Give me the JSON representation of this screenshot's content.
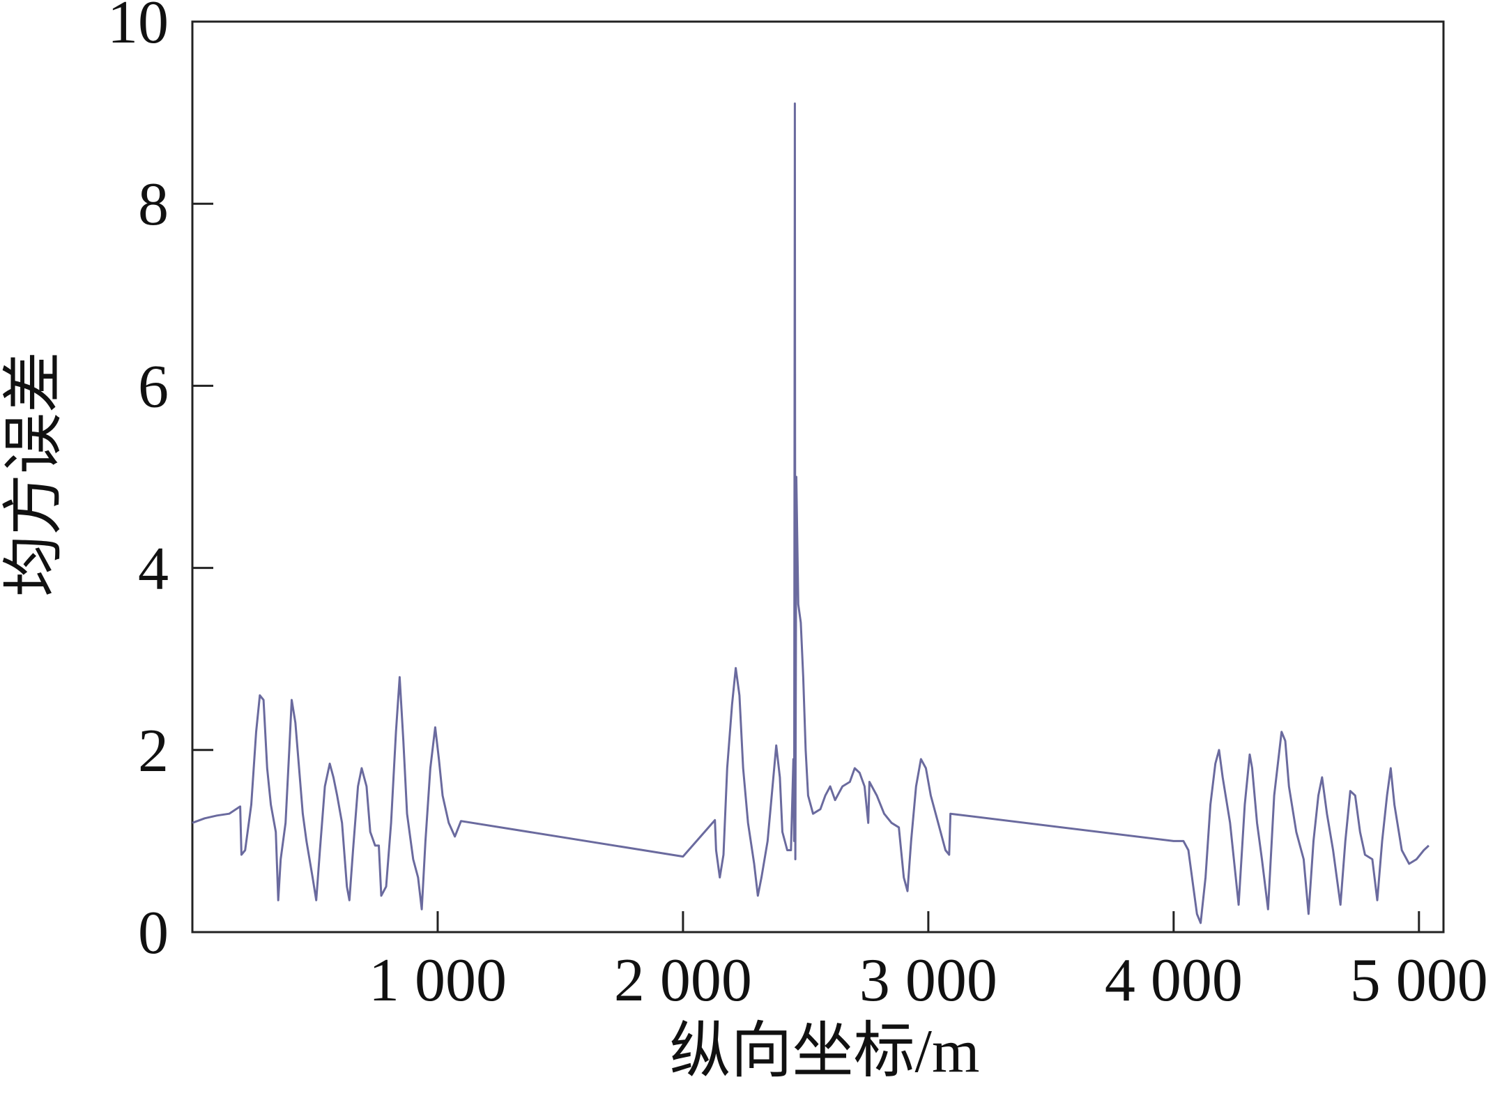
{
  "chart_data": {
    "type": "line",
    "xlabel": "纵向坐标/m",
    "ylabel": "均方误差",
    "xlim": [
      0,
      5100
    ],
    "ylim": [
      0,
      10
    ],
    "xticks": [
      {
        "value": 1000,
        "label": "1 000"
      },
      {
        "value": 2000,
        "label": "2 000"
      },
      {
        "value": 3000,
        "label": "3 000"
      },
      {
        "value": 4000,
        "label": "4 000"
      },
      {
        "value": 5000,
        "label": "5 000"
      }
    ],
    "yticks": [
      0,
      2,
      4,
      6,
      8,
      10
    ],
    "grid": false,
    "color": "#6a6a9e",
    "x": [
      0,
      50,
      100,
      150,
      195,
      200,
      215,
      240,
      260,
      275,
      290,
      305,
      320,
      340,
      350,
      360,
      380,
      395,
      405,
      420,
      435,
      450,
      465,
      490,
      505,
      520,
      540,
      560,
      575,
      590,
      610,
      630,
      640,
      655,
      675,
      690,
      710,
      725,
      745,
      760,
      770,
      790,
      810,
      830,
      845,
      860,
      875,
      900,
      920,
      935,
      950,
      970,
      990,
      1005,
      1020,
      1045,
      1070,
      1095,
      2000,
      2130,
      2135,
      2150,
      2165,
      2180,
      2200,
      2215,
      2230,
      2245,
      2265,
      2290,
      2305,
      2320,
      2345,
      2365,
      2380,
      2395,
      2405,
      2425,
      2440,
      2450,
      2453,
      2456,
      2458,
      2462,
      2470,
      2480,
      2490,
      2500,
      2510,
      2530,
      2560,
      2580,
      2600,
      2620,
      2650,
      2680,
      2700,
      2720,
      2740,
      2755,
      2760,
      2790,
      2820,
      2850,
      2880,
      2900,
      2915,
      2930,
      2950,
      2970,
      2990,
      3010,
      3040,
      3070,
      3085,
      3090,
      4000,
      4040,
      4060,
      4080,
      4095,
      4110,
      4130,
      4150,
      4170,
      4185,
      4200,
      4230,
      4265,
      4290,
      4310,
      4320,
      4340,
      4360,
      4385,
      4410,
      4440,
      4455,
      4470,
      4500,
      4530,
      4550,
      4570,
      4590,
      4605,
      4625,
      4650,
      4680,
      4700,
      4720,
      4740,
      4760,
      4780,
      4810,
      4830,
      4850,
      4870,
      4885,
      4900,
      4930,
      4960,
      4990,
      5020,
      5040
    ],
    "values": [
      1.2,
      1.25,
      1.28,
      1.3,
      1.38,
      0.85,
      0.9,
      1.4,
      2.2,
      2.6,
      2.55,
      1.8,
      1.4,
      1.1,
      0.35,
      0.8,
      1.2,
      2.0,
      2.55,
      2.3,
      1.8,
      1.3,
      1.0,
      0.6,
      0.35,
      0.9,
      1.6,
      1.85,
      1.7,
      1.5,
      1.2,
      0.5,
      0.35,
      0.9,
      1.6,
      1.8,
      1.6,
      1.1,
      0.95,
      0.95,
      0.4,
      0.5,
      1.2,
      2.2,
      2.8,
      2.1,
      1.3,
      0.8,
      0.6,
      0.25,
      1.0,
      1.8,
      2.25,
      1.9,
      1.5,
      1.2,
      1.05,
      1.22,
      0.83,
      1.23,
      0.9,
      0.6,
      0.85,
      1.8,
      2.5,
      2.9,
      2.6,
      1.8,
      1.2,
      0.75,
      0.4,
      0.6,
      1.0,
      1.6,
      2.05,
      1.7,
      1.1,
      0.9,
      0.9,
      1.9,
      1.0,
      9.1,
      0.8,
      5.0,
      3.6,
      3.4,
      2.8,
      2.0,
      1.5,
      1.3,
      1.35,
      1.5,
      1.6,
      1.45,
      1.6,
      1.65,
      1.8,
      1.75,
      1.6,
      1.2,
      1.65,
      1.5,
      1.3,
      1.2,
      1.15,
      0.6,
      0.45,
      1.0,
      1.6,
      1.9,
      1.8,
      1.5,
      1.2,
      0.9,
      0.85,
      1.3,
      1.0,
      1.0,
      0.9,
      0.5,
      0.2,
      0.1,
      0.6,
      1.4,
      1.85,
      2.0,
      1.7,
      1.2,
      0.3,
      1.4,
      1.95,
      1.8,
      1.2,
      0.8,
      0.25,
      1.5,
      2.2,
      2.1,
      1.6,
      1.1,
      0.8,
      0.2,
      1.0,
      1.5,
      1.7,
      1.3,
      0.9,
      0.3,
      1.0,
      1.55,
      1.5,
      1.1,
      0.85,
      0.8,
      0.35,
      1.0,
      1.5,
      1.8,
      1.4,
      0.9,
      0.75,
      0.8,
      0.9,
      0.95
    ]
  }
}
